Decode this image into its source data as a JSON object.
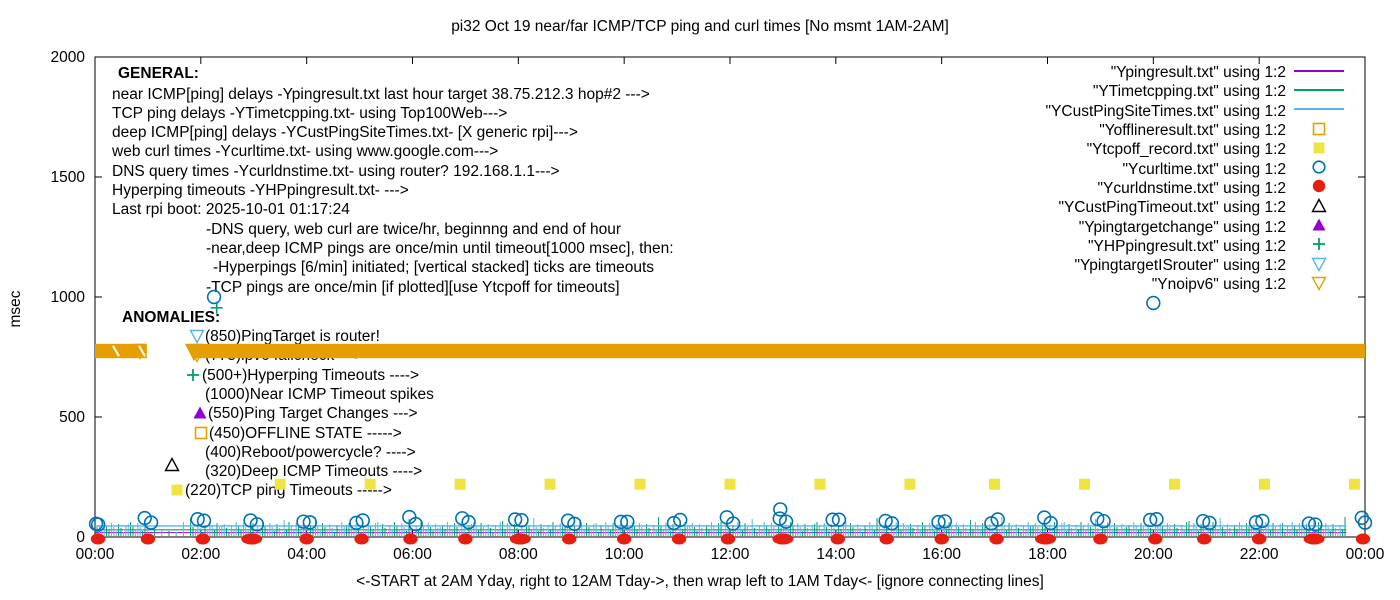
{
  "title": "pi32 Oct 19  near/far ICMP/TCP ping and curl times [No msmt 1AM-2AM]",
  "x_axis_label": "<-START at 2AM Yday, right to 12AM Tday->, then wrap left to 1AM Tday<- [ignore connecting lines]",
  "y_axis_label": "msec",
  "colors": {
    "purple": "#9400d3",
    "teal_green": "#009e73",
    "sky_blue": "#56b4e9",
    "orange": "#e69f00",
    "yellow": "#f0e442",
    "blue": "#0072b2",
    "red": "#e51e10",
    "black": "#000000"
  },
  "general": {
    "heading": "GENERAL:",
    "lines": [
      "near ICMP[ping] delays -Ypingresult.txt last hour target 38.75.212.3 hop#2 --->",
      "TCP ping delays -YTimetcpping.txt- using Top100Web--->",
      "deep ICMP[ping] delays -YCustPingSiteTimes.txt- [X generic rpi]--->",
      "web curl times -Ycurltime.txt- using www.google.com--->",
      "DNS query times -Ycurldnstime.txt- using router? 192.168.1.1--->",
      "Hyperping timeouts -YHPpingresult.txt- --->",
      "Last rpi boot: 2025-10-01 01:17:24"
    ],
    "notes": [
      "-DNS query, web curl are twice/hr, beginnng and end of hour",
      "-near,deep ICMP pings are once/min until timeout[1000 msec], then:",
      "-Hyperpings [6/min] initiated; [vertical stacked] ticks are timeouts",
      "-TCP pings are once/min [if plotted][use Ytcpoff for timeouts]"
    ]
  },
  "anomalies": {
    "heading": "ANOMALIES:",
    "items": [
      {
        "marker": "triangle-down-open",
        "color": "#56b4e9",
        "label": "(850)PingTarget is router!"
      },
      {
        "marker": "triangle-down-open",
        "color": "#e69f00",
        "label": "(775)ipv6 failcheck --->",
        "partially_hidden_behind_band": true
      },
      {
        "marker": "plus",
        "color": "#009e73",
        "label": "(500+)Hyperping Timeouts ---->"
      },
      {
        "marker": "none",
        "color": "",
        "label": "(1000)Near ICMP Timeout spikes"
      },
      {
        "marker": "triangle-up-filled",
        "color": "#9400d3",
        "label": "(550)Ping Target Changes --->"
      },
      {
        "marker": "square-open",
        "color": "#e69f00",
        "label": "(450)OFFLINE STATE ----->"
      },
      {
        "marker": "none",
        "color": "",
        "label": "(400)Reboot/powercycle? ---->"
      },
      {
        "marker": "triangle-up-open",
        "color": "#000000",
        "label": "(320)Deep ICMP Timeouts ---->"
      },
      {
        "marker": "square-filled",
        "color": "#f0e442",
        "label": "(220)TCP ping Timeouts ----->"
      }
    ]
  },
  "legend": {
    "items": [
      {
        "label": "\"Ypingresult.txt\" using 1:2",
        "marker": "line",
        "color": "#9400d3"
      },
      {
        "label": "\"YTimetcpping.txt\" using 1:2",
        "marker": "line",
        "color": "#009e73"
      },
      {
        "label": "\"YCustPingSiteTimes.txt\" using 1:2",
        "marker": "line",
        "color": "#56b4e9"
      },
      {
        "label": "\"Yofflineresult.txt\" using 1:2",
        "marker": "square-open",
        "color": "#e69f00"
      },
      {
        "label": "\"Ytcpoff_record.txt\" using 1:2",
        "marker": "square-filled",
        "color": "#f0e442"
      },
      {
        "label": "\"Ycurltime.txt\" using 1:2",
        "marker": "circle-open",
        "color": "#0072b2"
      },
      {
        "label": "\"Ycurldnstime.txt\" using 1:2",
        "marker": "circle-filled",
        "color": "#e51e10"
      },
      {
        "label": "\"YCustPingTimeout.txt\" using 1:2",
        "marker": "triangle-up-open",
        "color": "#000000"
      },
      {
        "label": "\"Ypingtargetchange\" using 1:2",
        "marker": "triangle-up-filled",
        "color": "#9400d3"
      },
      {
        "label": "\"YHPpingresult.txt\" using 1:2",
        "marker": "plus",
        "color": "#009e73"
      },
      {
        "label": "\"YpingtargetISrouter\" using 1:2",
        "marker": "triangle-down-open",
        "color": "#56b4e9"
      },
      {
        "label": "\"Ynoipv6\" using 1:2",
        "marker": "triangle-down-open",
        "color": "#e69f00"
      }
    ]
  },
  "chart_data": {
    "type": "scatter",
    "title": "pi32 Oct 19  near/far ICMP/TCP ping and curl times [No msmt 1AM-2AM]",
    "xlabel": "<-START at 2AM Yday, right to 12AM Tday->, then wrap left to 1AM Tday<- [ignore connecting lines]",
    "ylabel": "msec",
    "ylim": [
      0,
      2000
    ],
    "xlim_hours": [
      0,
      24
    ],
    "x_ticks": [
      "00:00",
      "02:00",
      "04:00",
      "06:00",
      "08:00",
      "10:00",
      "12:00",
      "14:00",
      "16:00",
      "18:00",
      "20:00",
      "22:00",
      "00:00"
    ],
    "y_ticks": [
      0,
      500,
      1000,
      1500,
      2000
    ],
    "grid": false,
    "legend_position": "top-right",
    "no_measurement_window": "01:00-02:00",
    "series": [
      {
        "name": "Ypingresult.txt",
        "style": "line",
        "color": "#9400d3",
        "desc": "near ICMP ping delay, flat near-zero trace",
        "value_msec": 18,
        "x_hours": [
          0,
          23.65
        ]
      },
      {
        "name": "YTimetcpping.txt",
        "style": "line-with-spikes",
        "color": "#009e73",
        "desc": "TCP ping delay, ~30 msec with 1-min spikes 0-55 msec",
        "value_msec": 30,
        "x_hours": [
          0,
          23.65
        ]
      },
      {
        "name": "YCustPingSiteTimes.txt",
        "style": "line-with-spikes",
        "color": "#56b4e9",
        "desc": "deep ICMP ping delay, ~46 msec with 1-min spikes",
        "value_msec": 46,
        "x_hours": [
          0,
          23.65
        ]
      },
      {
        "name": "Ytcpoff_record.txt",
        "style": "square-filled",
        "color": "#f0e442",
        "desc": "TCP ping timeout marks at 220 msec",
        "value_msec": 220,
        "hours": [
          3.5,
          5.2,
          6.9,
          8.6,
          10.3,
          12.0,
          13.7,
          15.4,
          17.0,
          18.7,
          20.4,
          22.1,
          23.8
        ]
      },
      {
        "name": "Ycurltime.txt",
        "style": "circle-open",
        "color": "#0072b2",
        "desc": "web curl times, pairs at begin/end of every hour",
        "pattern": {
          "hour_start": 0,
          "hour_end": 24,
          "pair_offset_hours": 0.06,
          "base_msec": 55,
          "jitter_msec": 29
        },
        "outliers": [
          {
            "hour": 2.25,
            "msec": 1000
          },
          {
            "hour": 20.0,
            "msec": 975
          },
          {
            "hour": 12.95,
            "msec": 115
          }
        ]
      },
      {
        "name": "Ycurldnstime.txt",
        "style": "circle-filled",
        "color": "#e51e10",
        "desc": "DNS query times, every hour, ~0 msec",
        "pattern": {
          "hour_start": 0,
          "hour_end": 24,
          "msec": 0
        }
      },
      {
        "name": "YHPpingresult.txt",
        "style": "plus",
        "color": "#009e73",
        "desc": "Hyperping timeout ticks",
        "points": [
          {
            "hour": 2.3,
            "msec": 955
          }
        ]
      },
      {
        "name": "Ynoipv6",
        "style": "band-of-down-triangles",
        "color": "#e69f00",
        "desc": "ipv6 fail state band (overlapping down-triangles)",
        "value_msec": 775,
        "band_halfwidth_msec": 30,
        "segments_hours": [
          [
            0,
            0.98
          ],
          [
            1.85,
            24
          ]
        ]
      }
    ],
    "noise_band": {
      "desc": "dense per-minute spikes above x-axis",
      "max_msec": 55,
      "x_end_hour": 23.65
    }
  }
}
